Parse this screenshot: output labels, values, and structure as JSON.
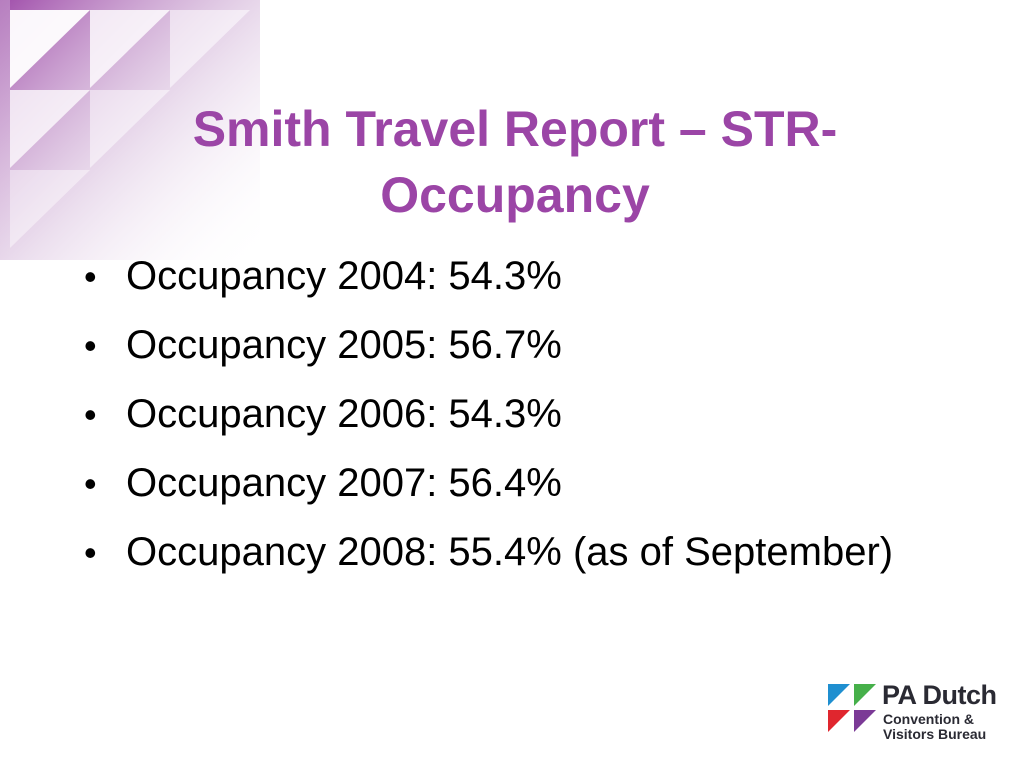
{
  "slide": {
    "title_line1": "Smith Travel Report – STR-",
    "title_line2": "Occupancy",
    "bullet_symbol": "•",
    "bullets": [
      "Occupancy 2004: 54.3%",
      "Occupancy 2005: 56.7%",
      "Occupancy 2006: 54.3%",
      "Occupancy 2007: 56.4%",
      "Occupancy 2008: 55.4% (as of September)"
    ]
  },
  "logo": {
    "name": "PA Dutch",
    "line1": "Convention &",
    "line2": "Visitors Bureau",
    "colors": {
      "blue": "#1f8fd0",
      "green": "#46b04a",
      "red": "#e0262e",
      "purple": "#7b3a96"
    }
  },
  "theme": {
    "title_color": "#9b45a6",
    "corner_purple": "#9b45a6"
  }
}
